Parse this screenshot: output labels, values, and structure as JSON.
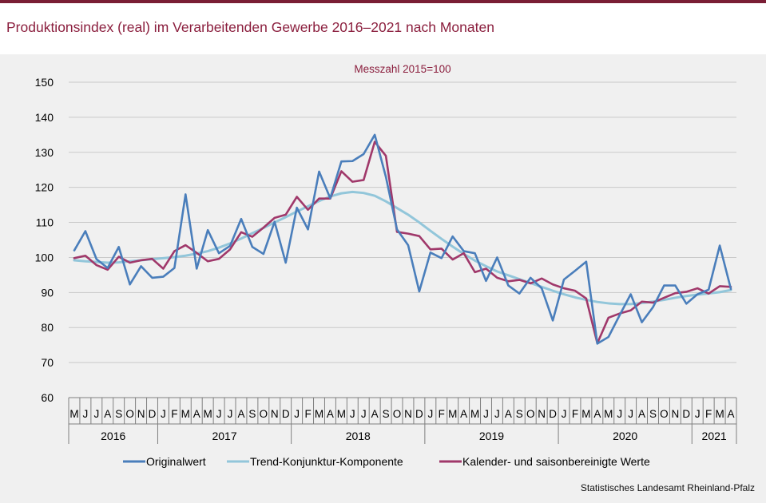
{
  "title": "Produktionsindex (real) im Verarbeitenden Gewerbe 2016–2021 nach Monaten",
  "source": "Statistisches Landesamt  Rheinland-Pfalz",
  "colors": {
    "accent": "#8b1f3e",
    "bar": "#7a1e35",
    "panel": "#f0f0f0"
  },
  "chart_data": {
    "type": "line",
    "subtitle": "Messzahl  2015=100",
    "ylim": [
      60,
      150
    ],
    "yticks": [
      60,
      70,
      80,
      90,
      100,
      110,
      120,
      130,
      140,
      150
    ],
    "grid": true,
    "legend_position": "bottom",
    "x": [
      "M",
      "J",
      "J",
      "A",
      "S",
      "O",
      "N",
      "D",
      "J",
      "F",
      "M",
      "A",
      "M",
      "J",
      "J",
      "A",
      "S",
      "O",
      "N",
      "D",
      "J",
      "F",
      "M",
      "A",
      "M",
      "J",
      "J",
      "A",
      "S",
      "O",
      "N",
      "D",
      "J",
      "F",
      "M",
      "A",
      "M",
      "J",
      "J",
      "A",
      "S",
      "O",
      "N",
      "D",
      "J",
      "F",
      "M",
      "A",
      "M",
      "J",
      "J",
      "A",
      "S",
      "O",
      "N",
      "D",
      "J",
      "F",
      "M",
      "A"
    ],
    "years": [
      {
        "label": "2016",
        "count": 8
      },
      {
        "label": "2017",
        "count": 12
      },
      {
        "label": "2018",
        "count": 12
      },
      {
        "label": "2019",
        "count": 12
      },
      {
        "label": "2020",
        "count": 12
      },
      {
        "label": "2021",
        "count": 4
      }
    ],
    "series": [
      {
        "name": "Originalwert",
        "color": "#4a7ebb",
        "values": [
          102,
          107.5,
          99.5,
          97,
          103,
          92.3,
          97.5,
          94.2,
          94.5,
          97,
          118,
          96.8,
          107.8,
          101.2,
          103.3,
          111,
          103,
          101,
          110.2,
          98.5,
          114.2,
          108,
          124.5,
          116.9,
          127.4,
          127.5,
          129.5,
          135,
          123,
          108,
          103.5,
          90.3,
          101.4,
          99.8,
          106,
          101.8,
          101.2,
          93.3,
          100,
          92,
          89.7,
          94.2,
          91.2,
          82,
          93.7,
          96.2,
          98.8,
          75.4,
          77.3,
          83.5,
          89.5,
          81.5,
          85.8,
          92,
          92,
          86.8,
          89.5,
          90.8,
          103.4,
          91
        ]
      },
      {
        "name": "Trend-Konjunktur-Komponente",
        "color": "#92c6da",
        "values": [
          99.2,
          98.9,
          98.7,
          98.5,
          98.6,
          98.9,
          99.2,
          99.5,
          99.8,
          100.1,
          100.5,
          101.1,
          101.8,
          102.8,
          104,
          105.4,
          106.9,
          108.4,
          110,
          111.5,
          113.1,
          114.6,
          116.1,
          117.4,
          118.3,
          118.7,
          118.4,
          117.6,
          116,
          114.1,
          112.2,
          110,
          107.6,
          105.3,
          103.1,
          101,
          99.1,
          97.5,
          96,
          94.9,
          93.8,
          92.7,
          91.6,
          90.5,
          89.5,
          88.6,
          87.9,
          87.3,
          86.9,
          86.7,
          86.7,
          87,
          87.4,
          87.9,
          88.5,
          89,
          89.4,
          89.7,
          90.1,
          90.7
        ]
      },
      {
        "name": "Kalender- und saisonbereinigte Werte",
        "color": "#a0386a",
        "values": [
          99.8,
          100.5,
          97.8,
          96.5,
          100.2,
          98.5,
          99.2,
          99.6,
          96.8,
          101.8,
          103.5,
          101.3,
          98.9,
          99.6,
          102.3,
          107.2,
          105.9,
          108.5,
          111.3,
          112.2,
          117.3,
          113.6,
          116.8,
          116.8,
          124.6,
          121.6,
          122.1,
          133,
          129,
          107.3,
          106.8,
          106.1,
          102.3,
          102.5,
          99.4,
          101.2,
          95.8,
          96.8,
          94.2,
          93.2,
          93.6,
          92.6,
          94,
          92.3,
          91.2,
          90.5,
          88.3,
          75.5,
          82.8,
          84,
          84.9,
          87.4,
          87.1,
          88.5,
          89.8,
          90.2,
          91.2,
          89.7,
          91.8,
          91.6
        ]
      }
    ]
  }
}
